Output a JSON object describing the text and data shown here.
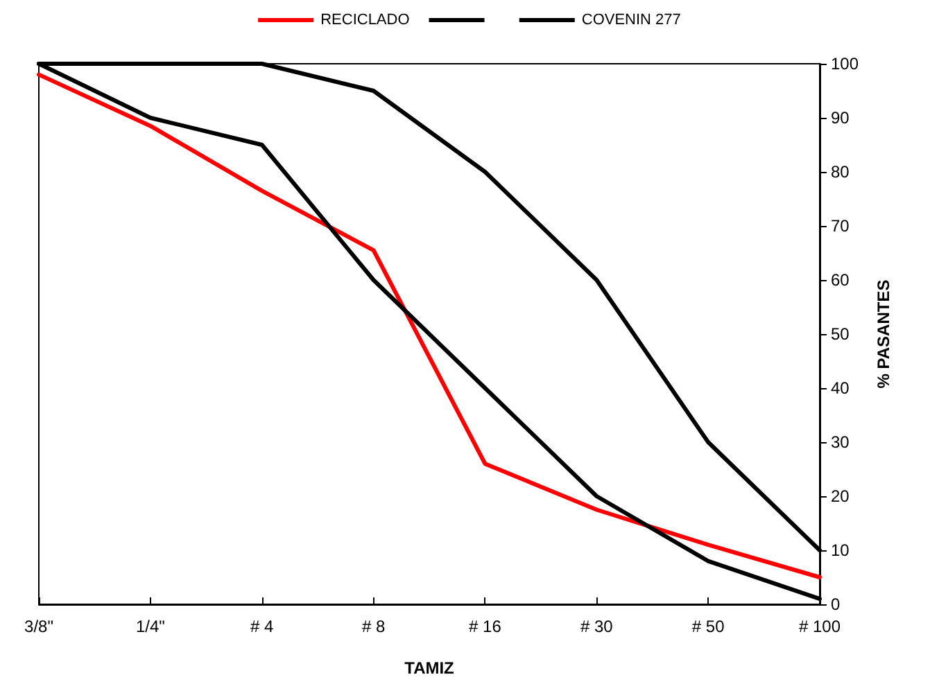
{
  "chart_data": {
    "type": "line",
    "xlabel": "TAMIZ",
    "ylabel": "% PASANTES",
    "categories": [
      "3/8\"",
      "1/4\"",
      "# 4",
      "# 8",
      "# 16",
      "# 30",
      "# 50",
      "# 100"
    ],
    "series": [
      {
        "name": "RECICLADO",
        "color": "#ff0000",
        "values": [
          98,
          88.5,
          76.5,
          65.5,
          26,
          17.5,
          11,
          5
        ]
      },
      {
        "color": "#000000",
        "values": [
          100,
          100,
          100,
          95,
          80,
          60,
          30,
          10
        ]
      },
      {
        "name": "COVENIN 277",
        "color": "#000000",
        "values": [
          100,
          90,
          85,
          60,
          40,
          20,
          8,
          1
        ]
      }
    ],
    "ylim": [
      0,
      100
    ],
    "yticks": [
      0,
      10,
      20,
      30,
      40,
      50,
      60,
      70,
      80,
      90,
      100
    ],
    "grid": false,
    "legend": "top",
    "marker": "none",
    "line_style": "solid"
  }
}
